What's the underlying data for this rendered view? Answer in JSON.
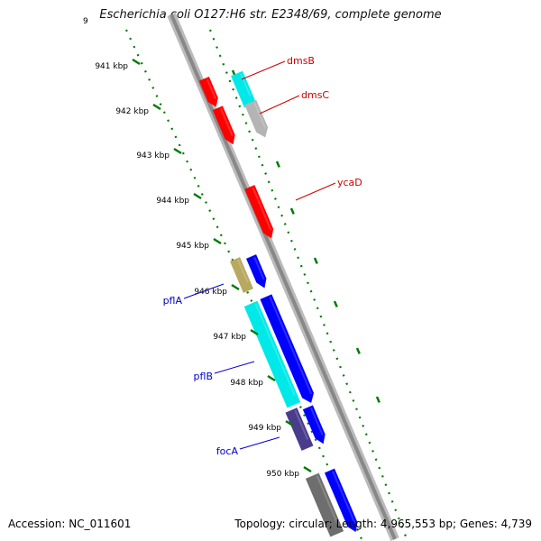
{
  "title": "Escherichia coli O127:H6 str. E2348/69, complete genome",
  "footer": {
    "accession": "Accession: NC_011601",
    "stats": "Topology: circular; Length: 4,965,553 bp; Genes: 4,739"
  },
  "colors": {
    "backbone": "#8c8c8c",
    "tick": "#007a00",
    "red": "#ff0000",
    "cyan": "#00e8e8",
    "blue": "#0000ff",
    "gray": "#b4b4b4",
    "olive": "#b8a860",
    "slate": "#4a3c8c",
    "dark_gray": "#6e6e6e",
    "label_red": "#cc0000",
    "label_blue": "#0000cc"
  },
  "ruler": {
    "ticks": [
      "941 kbp",
      "942 kbp",
      "943 kbp",
      "944 kbp",
      "945 kbp",
      "946 kbp",
      "947 kbp",
      "948 kbp",
      "949 kbp",
      "950 kbp"
    ]
  },
  "genes": [
    {
      "label": "dmsB",
      "color": "red"
    },
    {
      "label": "dmsC",
      "color": "red"
    },
    {
      "label": "ycaD",
      "color": "red"
    },
    {
      "label": "pflA",
      "color": "blue"
    },
    {
      "label": "pflB",
      "color": "blue"
    },
    {
      "label": "focA",
      "color": "blue"
    }
  ]
}
